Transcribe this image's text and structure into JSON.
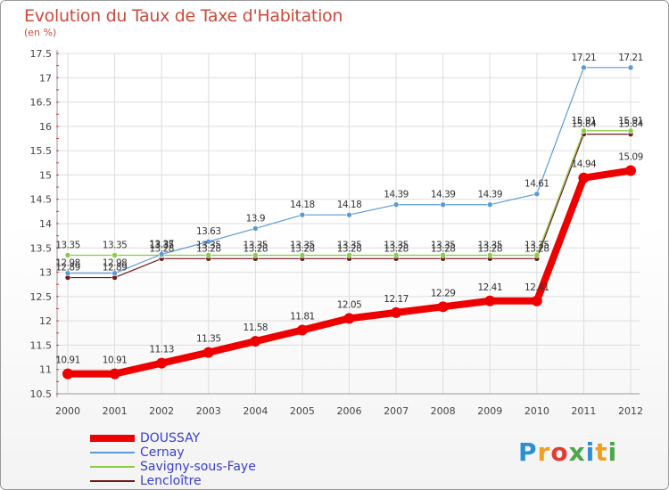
{
  "chart_data": {
    "type": "line",
    "title": "Evolution du Taux de Taxe d'Habitation",
    "subtitle": "(en %)",
    "xlabel": "",
    "ylabel": "",
    "categories": [
      "2000",
      "2001",
      "2002",
      "2003",
      "2004",
      "2005",
      "2006",
      "2007",
      "2008",
      "2009",
      "2010",
      "2011",
      "2012"
    ],
    "ylim": [
      10.5,
      17.5
    ],
    "yticks": [
      "10.5",
      "11",
      "11.5",
      "12",
      "12.5",
      "13",
      "13.5",
      "14",
      "14.5",
      "15",
      "15.5",
      "16",
      "16.5",
      "17",
      "17.5"
    ],
    "grid": true,
    "legend_position": "bottom-left",
    "series": [
      {
        "name": "DOUSSAY",
        "color": "#ee0000",
        "values": [
          10.91,
          10.91,
          11.13,
          11.35,
          11.58,
          11.81,
          12.05,
          12.17,
          12.29,
          12.41,
          12.41,
          14.94,
          15.09
        ],
        "labels": [
          "10.91",
          "10.91",
          "11.13",
          "11.35",
          "11.58",
          "11.81",
          "12.05",
          "12.17",
          "12.29",
          "12.41",
          "12.41",
          "14.94",
          "15.09"
        ]
      },
      {
        "name": "Cernay",
        "color": "#5b9bd5",
        "values": [
          12.98,
          12.98,
          13.37,
          13.63,
          13.9,
          14.18,
          14.18,
          14.39,
          14.39,
          14.39,
          14.61,
          17.21,
          17.21
        ],
        "labels": [
          "12.98",
          "12.98",
          "13.37",
          "13.63",
          "13.9",
          "14.18",
          "14.18",
          "14.39",
          "14.39",
          "14.39",
          "14.61",
          "17.21",
          "17.21"
        ]
      },
      {
        "name": "Savigny-sous-Faye",
        "color": "#88cc44",
        "values": [
          13.35,
          13.35,
          13.35,
          13.35,
          13.35,
          13.35,
          13.35,
          13.35,
          13.35,
          13.35,
          13.35,
          15.91,
          15.91
        ],
        "labels": [
          "13.35",
          "13.35",
          "13.35",
          "13.35",
          "13.35",
          "13.35",
          "13.35",
          "13.35",
          "13.35",
          "13.35",
          "13.35",
          "15.91",
          "15.91"
        ]
      },
      {
        "name": "Lencloître",
        "color": "#6e1a1a",
        "values": [
          12.89,
          12.89,
          13.28,
          13.28,
          13.28,
          13.28,
          13.28,
          13.28,
          13.28,
          13.28,
          13.28,
          15.84,
          15.84
        ],
        "labels": [
          "12.89",
          "12.89",
          "13.28",
          "13.28",
          "13.28",
          "13.28",
          "13.28",
          "13.28",
          "13.28",
          "13.28",
          "13.28",
          "15.84",
          "15.84"
        ]
      }
    ]
  },
  "logo": {
    "text": "Proxiti"
  }
}
